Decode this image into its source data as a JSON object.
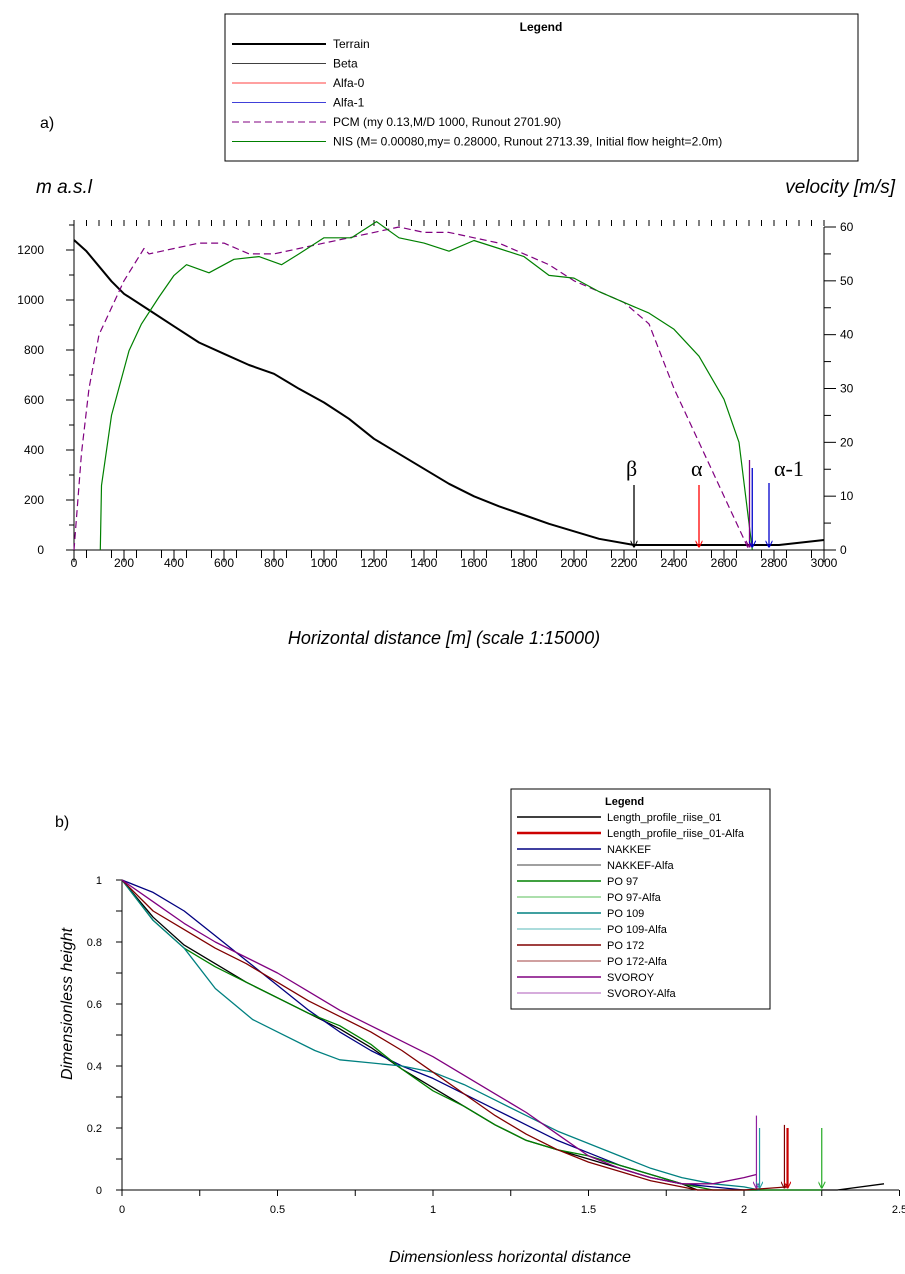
{
  "chart_data": [
    {
      "type": "line",
      "panel_label": "a)",
      "xlabel": "Horizontal distance [m] (scale 1:15000)",
      "ylabel_left": "m a.s.l",
      "ylabel_right": "velocity [m/s]",
      "xlim": [
        0,
        3000
      ],
      "ylim_left": [
        0,
        1300
      ],
      "ylim_right": [
        0,
        60
      ],
      "x_ticks": [
        0,
        200,
        400,
        600,
        800,
        1000,
        1200,
        1400,
        1600,
        1800,
        2000,
        2200,
        2400,
        2600,
        2800,
        3000
      ],
      "y_left_ticks": [
        0,
        200,
        400,
        600,
        800,
        1000,
        1200
      ],
      "y_right_ticks": [
        0,
        10,
        20,
        30,
        40,
        50,
        60
      ],
      "grid": false,
      "legend": {
        "title": "Legend",
        "placement": "top",
        "entries": [
          "Terrain",
          "Beta",
          "Alfa-0",
          "Alfa-1",
          "PCM (my 0.13,M/D 1000, Runout 2701.90)",
          "NIS (M= 0.00080,my= 0.28000, Runout 2713.39, Initial flow height=2.0m)"
        ]
      },
      "series": [
        {
          "name": "Terrain",
          "axis": "left",
          "color": "#000000",
          "style": "solid",
          "x": [
            0,
            50,
            100,
            150,
            200,
            300,
            400,
            500,
            600,
            700,
            800,
            900,
            1000,
            1100,
            1200,
            1300,
            1400,
            1500,
            1600,
            1700,
            1800,
            1900,
            2000,
            2100,
            2240,
            2820,
            3000
          ],
          "y": [
            1240,
            1195,
            1135,
            1075,
            1025,
            960,
            895,
            830,
            785,
            740,
            705,
            645,
            590,
            525,
            445,
            385,
            325,
            265,
            215,
            175,
            140,
            105,
            75,
            45,
            20,
            20,
            40
          ]
        },
        {
          "name": "PCM (my 0.13,M/D 1000, Runout 2701.90)",
          "axis": "right",
          "color": "#800080",
          "style": "dashed",
          "x": [
            0,
            30,
            60,
            100,
            150,
            200,
            280,
            300,
            400,
            500,
            600,
            700,
            800,
            900,
            1000,
            1100,
            1200,
            1300,
            1400,
            1500,
            1600,
            1700,
            1800,
            1900,
            2000,
            2100,
            2200,
            2300,
            2400,
            2500,
            2600,
            2700
          ],
          "y": [
            0,
            18,
            30,
            40,
            45,
            50,
            56,
            55,
            56,
            57,
            57,
            55,
            55,
            56,
            57,
            58,
            59,
            60,
            59,
            59,
            58,
            57,
            55,
            53,
            50,
            48,
            46,
            42,
            30,
            20,
            10,
            0
          ]
        },
        {
          "name": "NIS (M= 0.00080,my= 0.28000, Runout 2713.39, Initial flow height=2.0m)",
          "axis": "right",
          "color": "#008000",
          "style": "solid",
          "x": [
            105,
            110,
            150,
            220,
            270,
            340,
            400,
            450,
            540,
            640,
            740,
            830,
            900,
            1000,
            1110,
            1210,
            1300,
            1400,
            1500,
            1600,
            1700,
            1800,
            1900,
            2000,
            2100,
            2200,
            2300,
            2400,
            2500,
            2600,
            2660,
            2713
          ],
          "y": [
            0,
            12,
            25,
            37,
            42,
            47,
            51,
            53,
            51.5,
            54,
            54.5,
            53,
            55,
            58,
            58,
            61,
            58,
            57,
            55.5,
            57.5,
            56,
            54.5,
            51,
            50.5,
            48,
            46,
            44,
            41,
            36,
            28,
            20,
            0
          ]
        }
      ],
      "markers": [
        {
          "name": "Beta",
          "label": "β",
          "x": 2240,
          "color": "#000000"
        },
        {
          "name": "Alfa-0",
          "label": "α",
          "x": 2500,
          "color": "#ff0000"
        },
        {
          "name": "Alfa-1",
          "label": "α-1",
          "x": 2780,
          "color": "#0000cc"
        },
        {
          "name": "PCM runout",
          "label": "",
          "x": 2702,
          "color": "#800080"
        },
        {
          "name": "NIS runout",
          "label": "",
          "x": 2713,
          "color": "#0000cc"
        }
      ],
      "colors": {
        "terrain": "#000000",
        "alfa0": "#ff0000",
        "alfa1": "#0000cc",
        "pcm": "#800080",
        "nis": "#008000",
        "beta": "#000000"
      }
    },
    {
      "type": "line",
      "panel_label": "b)",
      "xlabel": "Dimensionless horizontal distance",
      "ylabel": "Dimensionless height",
      "xlim": [
        0,
        2.5
      ],
      "ylim": [
        0,
        1
      ],
      "x_ticks": [
        "0",
        "0.5",
        "1",
        "1.5",
        "2",
        "2.5"
      ],
      "y_ticks": [
        "0",
        "0.2",
        "0.4",
        "0.6",
        "0.8",
        "1"
      ],
      "grid": false,
      "legend": {
        "title": "Legend",
        "placement": "top-right",
        "entries": [
          {
            "name": "Length_profile_riise_01",
            "color": "#000000",
            "width": 1.5
          },
          {
            "name": "Length_profile_riise_01-Alfa",
            "color": "#cc0000",
            "width": 2.5
          },
          {
            "name": "NAKKEF",
            "color": "#000080",
            "width": 1.5
          },
          {
            "name": "NAKKEF-Alfa",
            "color": "#000000",
            "width": 0.8
          },
          {
            "name": "PO  97",
            "color": "#008000",
            "width": 1.5
          },
          {
            "name": "PO  97-Alfa",
            "color": "#22aa22",
            "width": 0.8
          },
          {
            "name": "PO 109",
            "color": "#008080",
            "width": 1.5
          },
          {
            "name": "PO 109-Alfa",
            "color": "#20a0a0",
            "width": 0.8
          },
          {
            "name": "PO 172",
            "color": "#800000",
            "width": 1.5
          },
          {
            "name": "PO 172-Alfa",
            "color": "#800000",
            "width": 0.8
          },
          {
            "name": "SVOROY",
            "color": "#800080",
            "width": 1.5
          },
          {
            "name": "SVOROY-Alfa",
            "color": "#9020a0",
            "width": 0.8
          }
        ]
      },
      "series": [
        {
          "name": "Length_profile_riise_01",
          "color": "#000000",
          "x": [
            0,
            0.1,
            0.2,
            0.3,
            0.4,
            0.5,
            0.6,
            0.7,
            0.8,
            0.9,
            1.0,
            1.1,
            1.2,
            1.3,
            1.4,
            1.5,
            1.6,
            1.7,
            1.8,
            1.85,
            2.3,
            2.45
          ],
          "y": [
            1,
            0.88,
            0.79,
            0.73,
            0.67,
            0.62,
            0.57,
            0.52,
            0.46,
            0.39,
            0.33,
            0.27,
            0.21,
            0.16,
            0.13,
            0.1,
            0.07,
            0.04,
            0.02,
            0.0,
            0.0,
            0.02
          ]
        },
        {
          "name": "NAKKEF",
          "color": "#000080",
          "x": [
            0,
            0.1,
            0.2,
            0.3,
            0.4,
            0.5,
            0.6,
            0.7,
            0.8,
            0.9,
            1.0,
            1.1,
            1.2,
            1.3,
            1.4,
            1.5,
            1.6,
            1.7,
            1.8,
            1.9,
            2.0,
            2.05
          ],
          "y": [
            1,
            0.96,
            0.9,
            0.82,
            0.74,
            0.66,
            0.58,
            0.51,
            0.45,
            0.4,
            0.36,
            0.31,
            0.26,
            0.21,
            0.16,
            0.12,
            0.08,
            0.05,
            0.02,
            0.01,
            0.0,
            0.0
          ]
        },
        {
          "name": "PO  97",
          "color": "#008000",
          "x": [
            0,
            0.1,
            0.2,
            0.3,
            0.4,
            0.5,
            0.6,
            0.7,
            0.8,
            0.9,
            1.0,
            1.1,
            1.2,
            1.3,
            1.4,
            1.5,
            1.6,
            1.7,
            1.8,
            1.9,
            2.0,
            2.25
          ],
          "y": [
            1,
            0.87,
            0.78,
            0.72,
            0.67,
            0.62,
            0.57,
            0.53,
            0.47,
            0.39,
            0.32,
            0.27,
            0.21,
            0.16,
            0.13,
            0.11,
            0.08,
            0.05,
            0.02,
            0.0,
            0.0,
            0.0
          ]
        },
        {
          "name": "PO 109",
          "color": "#008080",
          "x": [
            0,
            0.1,
            0.2,
            0.3,
            0.42,
            0.5,
            0.62,
            0.7,
            0.8,
            0.9,
            1.0,
            1.1,
            1.2,
            1.3,
            1.4,
            1.5,
            1.6,
            1.7,
            1.8,
            1.9,
            2.0,
            2.05
          ],
          "y": [
            1,
            0.87,
            0.78,
            0.65,
            0.55,
            0.51,
            0.45,
            0.42,
            0.41,
            0.4,
            0.38,
            0.34,
            0.29,
            0.24,
            0.19,
            0.15,
            0.11,
            0.07,
            0.04,
            0.02,
            0.01,
            0.0
          ]
        },
        {
          "name": "PO 172",
          "color": "#800000",
          "x": [
            0,
            0.1,
            0.2,
            0.3,
            0.4,
            0.5,
            0.6,
            0.7,
            0.8,
            0.9,
            1.0,
            1.1,
            1.2,
            1.3,
            1.4,
            1.5,
            1.6,
            1.7,
            1.8,
            1.85,
            2.0,
            2.14
          ],
          "y": [
            1,
            0.9,
            0.84,
            0.78,
            0.73,
            0.67,
            0.61,
            0.56,
            0.51,
            0.45,
            0.38,
            0.31,
            0.24,
            0.18,
            0.13,
            0.09,
            0.06,
            0.03,
            0.01,
            0.0,
            0.0,
            0.01
          ]
        },
        {
          "name": "SVOROY",
          "color": "#800080",
          "x": [
            0,
            0.1,
            0.2,
            0.3,
            0.4,
            0.5,
            0.6,
            0.7,
            0.8,
            0.9,
            1.0,
            1.1,
            1.2,
            1.3,
            1.4,
            1.5,
            1.6,
            1.7,
            1.8,
            1.9,
            2.0,
            2.04
          ],
          "y": [
            1,
            0.93,
            0.86,
            0.8,
            0.75,
            0.7,
            0.64,
            0.58,
            0.53,
            0.48,
            0.43,
            0.37,
            0.31,
            0.25,
            0.18,
            0.11,
            0.07,
            0.04,
            0.02,
            0.02,
            0.04,
            0.05
          ]
        }
      ],
      "markers": [
        {
          "name": "SVOROY-Alfa",
          "x": 2.04,
          "color": "#9020a0",
          "top": 0.24
        },
        {
          "name": "PO 109-Alfa",
          "x": 2.05,
          "color": "#20a0a0",
          "top": 0.2
        },
        {
          "name": "PO 172-Alfa",
          "x": 2.13,
          "color": "#800000",
          "top": 0.21
        },
        {
          "name": "Length_profile_riise_01-Alfa",
          "x": 2.14,
          "color": "#cc0000",
          "top": 0.2
        },
        {
          "name": "PO  97-Alfa",
          "x": 2.25,
          "color": "#22aa22",
          "top": 0.2
        }
      ]
    }
  ]
}
